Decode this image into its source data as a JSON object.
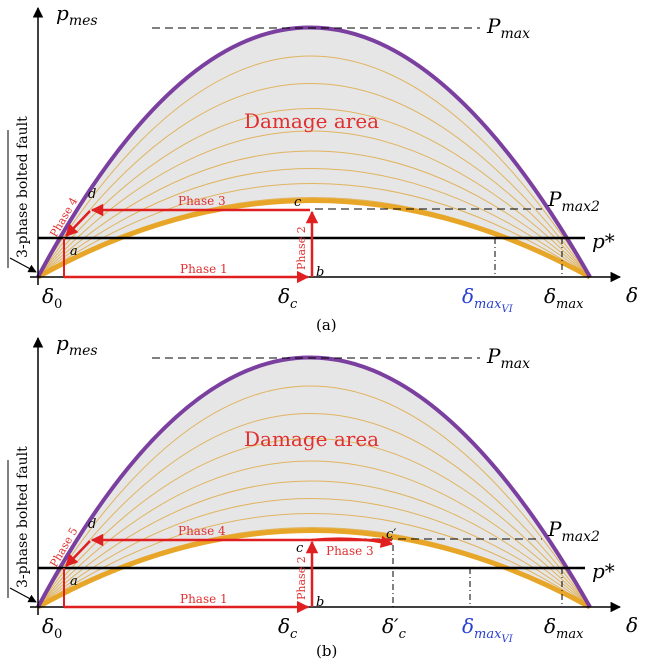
{
  "colors": {
    "purple": "#7b3fa0",
    "orange": "#e8a628",
    "thin_orange": "#e0b460",
    "red": "#e02020",
    "fill": "#e6e6e6",
    "blue": "#2a3fd0",
    "black": "#000000"
  },
  "panels": [
    {
      "caption": "(a)",
      "y_axis_label": "p",
      "y_axis_sub": "mes",
      "x_axis_label": "δ",
      "fault_label": "3-phase bolted fault",
      "area_label": "Damage area",
      "pmax_label": "P",
      "pmax_sub": "max",
      "pmax2_label": "P",
      "pmax2_sub": "max2",
      "pstar_label": "p*",
      "tick_delta0": "δ",
      "tick_delta0_sub": "0",
      "tick_deltac": "δ",
      "tick_deltac_sub": "c",
      "tick_deltamaxvi": "δ",
      "tick_deltamaxvi_sub": "max",
      "tick_deltamaxvi_subsub": "VI",
      "tick_deltamax": "δ",
      "tick_deltamax_sub": "max",
      "point_a": "a",
      "point_b": "b",
      "point_c": "c",
      "point_d": "d",
      "phase1": "Phase 1",
      "phase2": "Phase 2",
      "phase3": "Phase 3",
      "phase4": "Phase 4"
    },
    {
      "caption": "(b)",
      "y_axis_label": "p",
      "y_axis_sub": "mes",
      "x_axis_label": "δ",
      "fault_label": "3-phase bolted fault",
      "area_label": "Damage area",
      "pmax_label": "P",
      "pmax_sub": "max",
      "pmax2_label": "P",
      "pmax2_sub": "max2",
      "pstar_label": "p*",
      "tick_delta0": "δ",
      "tick_delta0_sub": "0",
      "tick_deltac": "δ",
      "tick_deltac_sub": "c",
      "tick_deltacp": "δ′",
      "tick_deltacp_sub": "c",
      "tick_deltamaxvi": "δ",
      "tick_deltamaxvi_sub": "max",
      "tick_deltamaxvi_subsub": "VI",
      "tick_deltamax": "δ",
      "tick_deltamax_sub": "max",
      "point_a": "a",
      "point_b": "b",
      "point_c": "c",
      "point_cp": "c′",
      "point_d": "d",
      "phase1": "Phase 1",
      "phase2": "Phase 2",
      "phase3": "Phase 3",
      "phase4": "Phase 4",
      "phase5": "Phase 5"
    }
  ]
}
